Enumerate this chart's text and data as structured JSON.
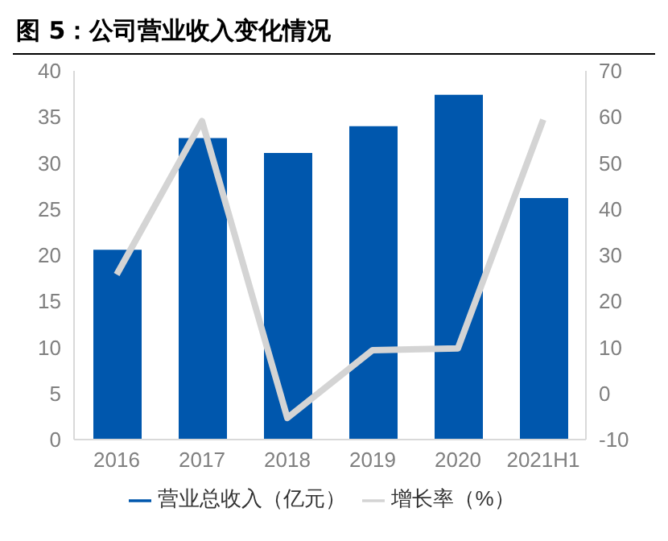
{
  "chart_data": {
    "type": "bar",
    "title": "图 5：公司营业收入变化情况",
    "categories": [
      "2016",
      "2017",
      "2018",
      "2019",
      "2020",
      "2021H1"
    ],
    "series": [
      {
        "name": "营业总收入（亿元）",
        "color": "#0057ad",
        "values": [
          20.6,
          32.7,
          31.1,
          34.0,
          37.4,
          26.2
        ]
      },
      {
        "name": "增长率（%）",
        "type": "line",
        "axis": "y2",
        "color": "#d4d4d4",
        "values": [
          25.8,
          59.1,
          -5.3,
          9.4,
          9.8,
          59.4
        ]
      }
    ],
    "ylim": [
      0,
      40
    ],
    "yticks": [
      0,
      5,
      10,
      15,
      20,
      25,
      30,
      35,
      40
    ],
    "y2lim": [
      -10,
      70
    ],
    "y2ticks": [
      -10,
      0,
      10,
      20,
      30,
      40,
      50,
      60,
      70
    ],
    "grid": false,
    "legend": "bottom",
    "marker": "none",
    "line_style": "solid"
  }
}
